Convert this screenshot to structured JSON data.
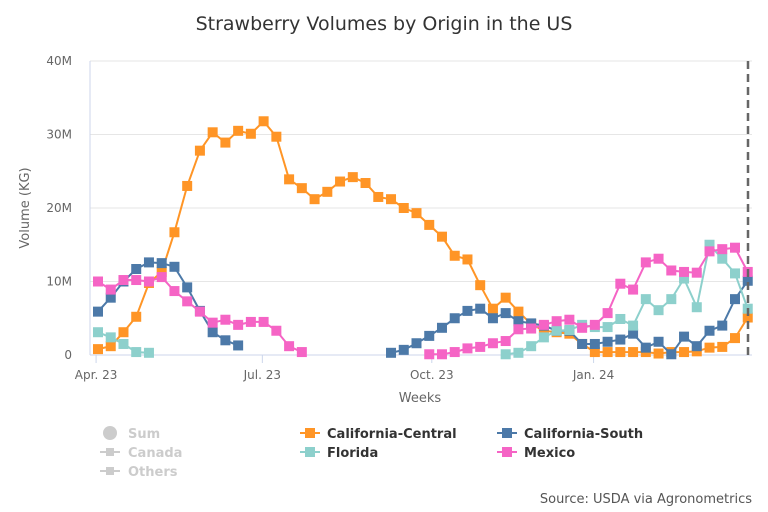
{
  "chart_data": {
    "type": "line",
    "title": "Strawberry Volumes by Origin in the US",
    "xlabel": "Weeks",
    "ylabel": "Volume (KG)",
    "x_tick_labels": [
      "Apr. 23",
      "Jul. 23",
      "Oct. 23",
      "Jan. 24"
    ],
    "y_tick_labels": [
      "0",
      "10M",
      "20M",
      "30M",
      "40M"
    ],
    "y_ticks": [
      0,
      10000000,
      20000000,
      30000000,
      40000000
    ],
    "ylim": [
      0,
      40000000
    ],
    "y_unit_multiplier": 1000000,
    "grid": "horizontal",
    "legend_placement": "bottom",
    "source": "Source: USDA via Agronometrics",
    "series": [
      {
        "name": "California-Central",
        "color": "#ff9526",
        "marker": "square",
        "values": [
          0.8,
          1.2,
          3.1,
          5.2,
          9.8,
          11.3,
          16.7,
          23.0,
          27.8,
          30.3,
          28.9,
          30.5,
          30.1,
          31.8,
          29.7,
          23.9,
          22.7,
          21.2,
          22.2,
          23.6,
          24.2,
          23.4,
          21.5,
          21.2,
          20.0,
          19.3,
          17.7,
          16.1,
          13.5,
          13.0,
          9.5,
          6.3,
          7.8,
          5.9,
          4.2,
          3.3,
          3.1,
          2.9,
          1.5,
          0.4,
          0.4,
          0.4,
          0.4,
          0.4,
          0.2,
          0.4,
          0.4,
          0.5,
          1.0,
          1.1,
          2.3,
          5.1
        ]
      },
      {
        "name": "California-South",
        "color": "#4c79a8",
        "marker": "square",
        "values": [
          5.9,
          7.8,
          10.0,
          11.7,
          12.6,
          12.5,
          12.0,
          9.2,
          6.0,
          3.1,
          2.0,
          1.3,
          null,
          null,
          null,
          null,
          null,
          null,
          null,
          null,
          null,
          null,
          null,
          0.3,
          0.7,
          1.6,
          2.6,
          3.7,
          5.0,
          6.0,
          6.3,
          5.0,
          5.7,
          4.6,
          4.3,
          4.0,
          3.3,
          3.3,
          1.5,
          1.5,
          1.8,
          2.1,
          2.9,
          1.0,
          1.8,
          0.1,
          2.5,
          1.2,
          3.3,
          4.0,
          7.6,
          10.1
        ]
      },
      {
        "name": "Florida",
        "color": "#8dd0cc",
        "marker": "square",
        "values": [
          3.1,
          2.4,
          1.5,
          0.4,
          0.3,
          null,
          null,
          null,
          null,
          null,
          null,
          null,
          null,
          null,
          null,
          null,
          null,
          null,
          null,
          null,
          null,
          null,
          null,
          null,
          null,
          null,
          null,
          null,
          null,
          null,
          null,
          null,
          0.1,
          0.3,
          1.2,
          2.4,
          3.3,
          3.4,
          4.1,
          3.8,
          3.8,
          4.9,
          4.0,
          7.6,
          6.1,
          7.6,
          10.4,
          6.5,
          15.0,
          13.1,
          11.1,
          6.3
        ]
      },
      {
        "name": "Mexico",
        "color": "#f564c5",
        "marker": "square",
        "values": [
          10.0,
          8.9,
          10.2,
          10.2,
          10.0,
          10.6,
          8.7,
          7.3,
          5.9,
          4.4,
          4.8,
          4.1,
          4.5,
          4.5,
          3.3,
          1.2,
          0.4,
          null,
          null,
          null,
          null,
          null,
          null,
          null,
          null,
          null,
          0.1,
          0.1,
          0.4,
          0.9,
          1.1,
          1.6,
          1.9,
          3.5,
          3.6,
          4.1,
          4.6,
          4.8,
          3.7,
          4.1,
          5.7,
          9.7,
          8.9,
          12.6,
          13.1,
          11.5,
          11.3,
          11.2,
          14.1,
          14.4,
          14.6,
          11.3
        ]
      }
    ],
    "hidden_series": [
      {
        "name": "Sum",
        "marker": "circle"
      },
      {
        "name": "Canada",
        "marker": "square"
      },
      {
        "name": "Others",
        "marker": "square"
      }
    ],
    "hidden_color": "#cccccc"
  }
}
